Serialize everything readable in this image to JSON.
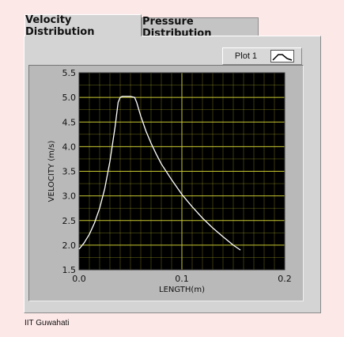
{
  "tabs": [
    {
      "label": "Velocity Distribution",
      "active": true
    },
    {
      "label": "Pressure Distribution",
      "active": false
    }
  ],
  "legend": {
    "label": "Plot 1"
  },
  "footer": "IIT Guwahati",
  "colors": {
    "plot_bg": "#000000",
    "grid": "#c8c832",
    "curve": "#ffffff",
    "page_bg": "#fde8e8"
  },
  "chart_data": {
    "type": "line",
    "xlabel": "LENGTH(m)",
    "ylabel": "VELOCITY (m/s)",
    "xlim": [
      0.0,
      0.2
    ],
    "ylim": [
      1.5,
      5.5
    ],
    "xticks": [
      "0.0",
      "0.1",
      "0.2"
    ],
    "yticks": [
      "1.5",
      "2.0",
      "2.5",
      "3.0",
      "3.5",
      "4.0",
      "4.5",
      "5.0",
      "5.5"
    ],
    "grid": true,
    "legend_position": "top-right",
    "series": [
      {
        "name": "Plot 1",
        "x": [
          0.0,
          0.005,
          0.01,
          0.015,
          0.02,
          0.025,
          0.03,
          0.035,
          0.038,
          0.04,
          0.042,
          0.045,
          0.05,
          0.054,
          0.056,
          0.06,
          0.065,
          0.07,
          0.075,
          0.08,
          0.09,
          0.1,
          0.11,
          0.12,
          0.13,
          0.14,
          0.15,
          0.157
        ],
        "y": [
          1.92,
          2.05,
          2.22,
          2.45,
          2.75,
          3.15,
          3.7,
          4.4,
          4.9,
          5.0,
          5.02,
          5.02,
          5.02,
          5.0,
          4.9,
          4.62,
          4.32,
          4.07,
          3.85,
          3.65,
          3.33,
          3.03,
          2.78,
          2.55,
          2.35,
          2.17,
          2.0,
          1.9
        ]
      }
    ]
  }
}
